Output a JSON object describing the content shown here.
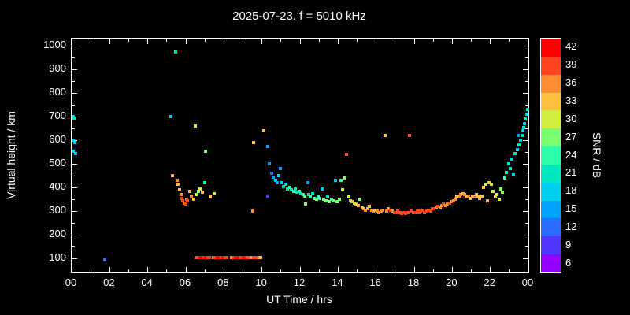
{
  "header": {
    "title": "2025-07-23. f = 5010 kHz"
  },
  "colors": {
    "background": "#000000",
    "foreground": "#ffffff"
  },
  "chart_data": {
    "type": "scatter",
    "title": "2025-07-23. f = 5010 kHz",
    "xlabel": "UT Time / hrs",
    "ylabel": "Virtual height / km",
    "xlim": [
      0,
      24
    ],
    "ylim": [
      40,
      1030
    ],
    "grid": false,
    "x_ticks": {
      "values": [
        0,
        2,
        4,
        6,
        8,
        10,
        12,
        14,
        16,
        18,
        20,
        22,
        24
      ],
      "labels": [
        "00",
        "02",
        "04",
        "06",
        "08",
        "10",
        "12",
        "14",
        "16",
        "18",
        "20",
        "22",
        "00"
      ],
      "minor_step": 1
    },
    "y_ticks": {
      "values": [
        100,
        200,
        300,
        400,
        500,
        600,
        700,
        800,
        900,
        1000
      ],
      "labels": [
        "100",
        "200",
        "300",
        "400",
        "500",
        "600",
        "700",
        "800",
        "900",
        "1000"
      ],
      "minor_step": 50
    },
    "colorbar": {
      "label": "SNR / dB",
      "range": [
        4.5,
        43.5
      ],
      "tick_values": [
        6,
        9,
        12,
        15,
        18,
        21,
        24,
        27,
        30,
        33,
        36,
        39,
        42
      ],
      "stops": [
        {
          "snr": 6,
          "color": "#9400ff"
        },
        {
          "snr": 9,
          "color": "#5036ff"
        },
        {
          "snr": 12,
          "color": "#2b6bff"
        },
        {
          "snr": 15,
          "color": "#00a0ff"
        },
        {
          "snr": 18,
          "color": "#00cfee"
        },
        {
          "snr": 21,
          "color": "#00e8c0"
        },
        {
          "snr": 24,
          "color": "#2dffa8"
        },
        {
          "snr": 27,
          "color": "#7aff6e"
        },
        {
          "snr": 30,
          "color": "#d0ee44"
        },
        {
          "snr": 33,
          "color": "#ffc040"
        },
        {
          "snr": 36,
          "color": "#ff8c30"
        },
        {
          "snr": 39,
          "color": "#ff4520"
        },
        {
          "snr": 42,
          "color": "#ff0000"
        }
      ]
    },
    "points_format": [
      "ut_hours",
      "virtual_height_km",
      "snr_db"
    ],
    "points": [
      [
        0.08,
        700,
        18
      ],
      [
        0.12,
        695,
        20
      ],
      [
        0.07,
        600,
        18
      ],
      [
        0.18,
        590,
        17
      ],
      [
        0.1,
        555,
        19
      ],
      [
        0.2,
        545,
        18
      ],
      [
        1.72,
        95,
        12
      ],
      [
        5.2,
        700,
        19
      ],
      [
        5.45,
        975,
        21
      ],
      [
        5.3,
        450,
        33
      ],
      [
        5.55,
        430,
        36
      ],
      [
        5.6,
        415,
        33
      ],
      [
        5.65,
        390,
        33
      ],
      [
        5.75,
        370,
        36
      ],
      [
        5.8,
        355,
        38
      ],
      [
        5.85,
        345,
        39
      ],
      [
        5.9,
        335,
        36
      ],
      [
        6.0,
        330,
        39
      ],
      [
        6.05,
        350,
        36
      ],
      [
        6.1,
        345,
        38
      ],
      [
        6.2,
        385,
        33
      ],
      [
        6.3,
        360,
        36
      ],
      [
        6.4,
        350,
        33
      ],
      [
        6.5,
        660,
        30
      ],
      [
        6.55,
        370,
        30
      ],
      [
        6.65,
        385,
        27
      ],
      [
        6.75,
        395,
        30
      ],
      [
        6.85,
        380,
        33
      ],
      [
        7.0,
        420,
        20
      ],
      [
        7.05,
        555,
        27
      ],
      [
        7.3,
        360,
        33
      ],
      [
        7.5,
        375,
        30
      ],
      [
        6.55,
        105,
        39
      ],
      [
        6.65,
        105,
        40
      ],
      [
        6.75,
        105,
        42
      ],
      [
        6.85,
        105,
        41
      ],
      [
        6.95,
        105,
        39
      ],
      [
        7.05,
        105,
        42
      ],
      [
        7.15,
        105,
        40
      ],
      [
        7.25,
        105,
        38
      ],
      [
        7.45,
        105,
        36
      ],
      [
        7.55,
        105,
        39
      ],
      [
        7.65,
        105,
        42
      ],
      [
        7.75,
        105,
        41
      ],
      [
        7.85,
        105,
        40
      ],
      [
        7.95,
        105,
        42
      ],
      [
        8.05,
        105,
        39
      ],
      [
        8.15,
        105,
        38
      ],
      [
        8.4,
        105,
        36
      ],
      [
        8.5,
        105,
        39
      ],
      [
        8.6,
        105,
        42
      ],
      [
        8.7,
        105,
        41
      ],
      [
        8.8,
        105,
        42
      ],
      [
        8.9,
        105,
        40
      ],
      [
        9.0,
        105,
        42
      ],
      [
        9.1,
        105,
        41
      ],
      [
        9.2,
        105,
        39
      ],
      [
        9.3,
        105,
        38
      ],
      [
        9.45,
        105,
        36
      ],
      [
        9.55,
        105,
        39
      ],
      [
        9.65,
        105,
        40
      ],
      [
        9.75,
        105,
        38
      ],
      [
        9.85,
        105,
        36
      ],
      [
        9.95,
        105,
        33
      ],
      [
        9.5,
        300,
        36
      ],
      [
        9.55,
        590,
        33
      ],
      [
        10.1,
        640,
        33
      ],
      [
        10.3,
        575,
        15
      ],
      [
        10.4,
        500,
        15
      ],
      [
        10.5,
        460,
        12
      ],
      [
        10.6,
        445,
        15
      ],
      [
        10.3,
        365,
        8
      ],
      [
        10.7,
        430,
        18
      ],
      [
        10.8,
        420,
        15
      ],
      [
        10.9,
        450,
        18
      ],
      [
        10.95,
        480,
        15
      ],
      [
        11.05,
        420,
        18
      ],
      [
        11.15,
        405,
        21
      ],
      [
        11.25,
        415,
        18
      ],
      [
        11.35,
        395,
        21
      ],
      [
        11.45,
        400,
        24
      ],
      [
        11.55,
        390,
        21
      ],
      [
        11.65,
        385,
        24
      ],
      [
        11.75,
        395,
        21
      ],
      [
        11.85,
        380,
        21
      ],
      [
        11.95,
        385,
        24
      ],
      [
        12.05,
        375,
        21
      ],
      [
        12.15,
        370,
        24
      ],
      [
        12.25,
        365,
        27
      ],
      [
        12.3,
        330,
        27
      ],
      [
        12.4,
        420,
        15
      ],
      [
        12.45,
        370,
        21
      ],
      [
        12.55,
        360,
        24
      ],
      [
        12.65,
        375,
        21
      ],
      [
        12.75,
        355,
        24
      ],
      [
        12.85,
        350,
        27
      ],
      [
        12.95,
        360,
        24
      ],
      [
        13.05,
        355,
        24
      ],
      [
        13.15,
        395,
        18
      ],
      [
        13.25,
        350,
        27
      ],
      [
        13.35,
        345,
        27
      ],
      [
        13.45,
        360,
        21
      ],
      [
        13.55,
        340,
        27
      ],
      [
        13.65,
        350,
        24
      ],
      [
        13.75,
        345,
        27
      ],
      [
        13.85,
        430,
        18
      ],
      [
        13.95,
        340,
        27
      ],
      [
        14.05,
        350,
        27
      ],
      [
        14.15,
        430,
        24
      ],
      [
        14.25,
        390,
        30
      ],
      [
        14.35,
        440,
        27
      ],
      [
        14.45,
        540,
        39
      ],
      [
        14.55,
        360,
        30
      ],
      [
        14.65,
        345,
        30
      ],
      [
        14.75,
        340,
        33
      ],
      [
        14.85,
        335,
        30
      ],
      [
        14.95,
        330,
        33
      ],
      [
        15.05,
        325,
        33
      ],
      [
        15.15,
        350,
        27
      ],
      [
        15.25,
        315,
        33
      ],
      [
        15.35,
        310,
        33
      ],
      [
        15.45,
        305,
        36
      ],
      [
        15.55,
        310,
        33
      ],
      [
        15.65,
        320,
        33
      ],
      [
        15.75,
        305,
        36
      ],
      [
        15.85,
        300,
        36
      ],
      [
        15.95,
        305,
        33
      ],
      [
        16.05,
        300,
        36
      ],
      [
        16.15,
        295,
        36
      ],
      [
        16.25,
        300,
        36
      ],
      [
        16.35,
        305,
        36
      ],
      [
        16.45,
        620,
        33
      ],
      [
        16.55,
        300,
        36
      ],
      [
        16.65,
        310,
        36
      ],
      [
        16.75,
        305,
        38
      ],
      [
        16.85,
        300,
        36
      ],
      [
        16.95,
        295,
        38
      ],
      [
        17.05,
        295,
        38
      ],
      [
        17.15,
        300,
        39
      ],
      [
        17.25,
        295,
        39
      ],
      [
        17.35,
        290,
        39
      ],
      [
        17.45,
        295,
        40
      ],
      [
        17.55,
        290,
        39
      ],
      [
        17.65,
        295,
        39
      ],
      [
        17.75,
        620,
        39
      ],
      [
        17.85,
        300,
        39
      ],
      [
        17.95,
        295,
        40
      ],
      [
        18.05,
        295,
        39
      ],
      [
        18.15,
        300,
        40
      ],
      [
        18.25,
        295,
        39
      ],
      [
        18.35,
        300,
        39
      ],
      [
        18.45,
        305,
        38
      ],
      [
        18.55,
        295,
        39
      ],
      [
        18.65,
        300,
        40
      ],
      [
        18.75,
        305,
        39
      ],
      [
        18.85,
        300,
        38
      ],
      [
        18.95,
        310,
        39
      ],
      [
        19.05,
        310,
        38
      ],
      [
        19.15,
        315,
        36
      ],
      [
        19.25,
        320,
        38
      ],
      [
        19.35,
        315,
        36
      ],
      [
        19.45,
        325,
        36
      ],
      [
        19.55,
        330,
        38
      ],
      [
        19.65,
        325,
        36
      ],
      [
        19.75,
        330,
        36
      ],
      [
        19.85,
        335,
        38
      ],
      [
        19.95,
        340,
        36
      ],
      [
        20.05,
        345,
        36
      ],
      [
        20.15,
        350,
        36
      ],
      [
        20.25,
        360,
        33
      ],
      [
        20.35,
        365,
        36
      ],
      [
        20.45,
        370,
        36
      ],
      [
        20.55,
        375,
        33
      ],
      [
        20.65,
        370,
        36
      ],
      [
        20.75,
        365,
        33
      ],
      [
        20.85,
        360,
        36
      ],
      [
        20.95,
        355,
        33
      ],
      [
        21.05,
        360,
        33
      ],
      [
        21.15,
        365,
        36
      ],
      [
        21.25,
        370,
        33
      ],
      [
        21.35,
        360,
        33
      ],
      [
        21.45,
        355,
        33
      ],
      [
        21.55,
        365,
        33
      ],
      [
        21.65,
        400,
        33
      ],
      [
        21.75,
        415,
        30
      ],
      [
        21.85,
        345,
        33
      ],
      [
        21.95,
        420,
        33
      ],
      [
        22.05,
        415,
        30
      ],
      [
        22.15,
        385,
        30
      ],
      [
        22.25,
        360,
        33
      ],
      [
        22.35,
        370,
        30
      ],
      [
        22.45,
        350,
        30
      ],
      [
        22.55,
        395,
        27
      ],
      [
        22.65,
        380,
        27
      ],
      [
        22.75,
        440,
        24
      ],
      [
        22.85,
        465,
        21
      ],
      [
        22.95,
        500,
        21
      ],
      [
        23.05,
        480,
        21
      ],
      [
        23.15,
        520,
        18
      ],
      [
        23.2,
        455,
        18
      ],
      [
        23.3,
        545,
        21
      ],
      [
        23.4,
        560,
        18
      ],
      [
        23.45,
        620,
        15
      ],
      [
        23.5,
        580,
        21
      ],
      [
        23.6,
        600,
        18
      ],
      [
        23.65,
        620,
        21
      ],
      [
        23.7,
        640,
        18
      ],
      [
        23.75,
        655,
        21
      ],
      [
        23.8,
        670,
        18
      ],
      [
        23.85,
        690,
        21
      ],
      [
        23.9,
        710,
        18
      ],
      [
        23.95,
        730,
        20
      ]
    ]
  }
}
